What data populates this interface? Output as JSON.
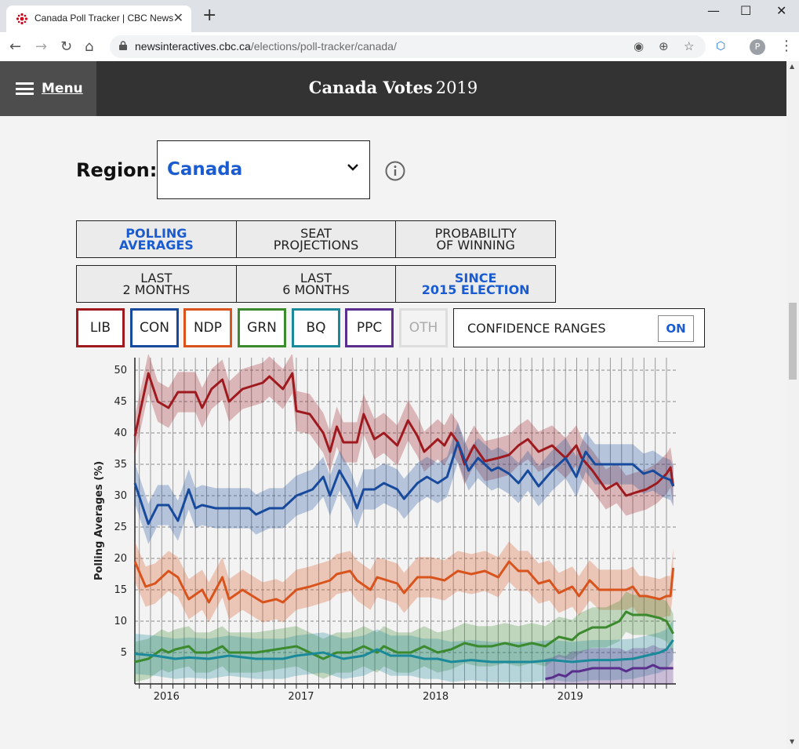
{
  "browser": {
    "tab_title": "Canada Poll Tracker | CBC News",
    "url_host": "newsinteractives.cbc.ca",
    "url_path": "/elections/poll-tracker/canada/",
    "avatar_initial": "P"
  },
  "header": {
    "menu_label": "Menu",
    "title_bold": "Canada Votes",
    "title_year": "2019"
  },
  "region": {
    "label": "Region:",
    "value": "Canada"
  },
  "view_tabs": [
    {
      "line1": "POLLING",
      "line2": "AVERAGES",
      "active": true
    },
    {
      "line1": "SEAT",
      "line2": "PROJECTIONS",
      "active": false
    },
    {
      "line1": "PROBABILITY",
      "line2": "OF WINNING",
      "active": false
    }
  ],
  "range_tabs": [
    {
      "line1": "LAST",
      "line2": "2 MONTHS",
      "active": false
    },
    {
      "line1": "LAST",
      "line2": "6 MONTHS",
      "active": false
    },
    {
      "line1": "SINCE",
      "line2": "2015 ELECTION",
      "active": true
    }
  ],
  "parties": [
    {
      "code": "LIB",
      "color": "#9e1a1f",
      "active": true
    },
    {
      "code": "CON",
      "color": "#174a9c",
      "active": true
    },
    {
      "code": "NDP",
      "color": "#d9541d",
      "active": true
    },
    {
      "code": "GRN",
      "color": "#3b8a2e",
      "active": true
    },
    {
      "code": "BQ",
      "color": "#1a8a9a",
      "active": true
    },
    {
      "code": "PPC",
      "color": "#5a2e8c",
      "active": true
    },
    {
      "code": "OTH",
      "color": "#cccccc",
      "active": false
    }
  ],
  "confidence": {
    "label": "CONFIDENCE RANGES",
    "state": "ON"
  },
  "chart_data": {
    "type": "line",
    "ylabel": "Polling Averages (%)",
    "ylim": [
      0,
      52
    ],
    "yticks": [
      5,
      10,
      15,
      20,
      25,
      30,
      35,
      40,
      45,
      50
    ],
    "x_tick_labels": [
      "2016",
      "2017",
      "2018",
      "2019"
    ],
    "xlim": [
      2015.8,
      2019.82
    ],
    "confidence_ranges": true,
    "series": [
      {
        "name": "LIB",
        "color": "#9e1a1f",
        "points": [
          [
            2015.8,
            39.5
          ],
          [
            2015.9,
            49.5
          ],
          [
            2015.97,
            45
          ],
          [
            2016.05,
            44
          ],
          [
            2016.12,
            46.5
          ],
          [
            2016.25,
            46.5
          ],
          [
            2016.3,
            44
          ],
          [
            2016.37,
            47
          ],
          [
            2016.45,
            48.5
          ],
          [
            2016.5,
            45
          ],
          [
            2016.6,
            47
          ],
          [
            2016.75,
            48
          ],
          [
            2016.8,
            49
          ],
          [
            2016.9,
            47
          ],
          [
            2016.97,
            49.5
          ],
          [
            2017.0,
            43.5
          ],
          [
            2017.1,
            43
          ],
          [
            2017.2,
            40
          ],
          [
            2017.25,
            37
          ],
          [
            2017.3,
            41
          ],
          [
            2017.35,
            38.5
          ],
          [
            2017.45,
            38.5
          ],
          [
            2017.5,
            43
          ],
          [
            2017.58,
            39
          ],
          [
            2017.65,
            40
          ],
          [
            2017.75,
            38
          ],
          [
            2017.83,
            42
          ],
          [
            2017.9,
            39.5
          ],
          [
            2017.95,
            37
          ],
          [
            2018.05,
            39
          ],
          [
            2018.1,
            38
          ],
          [
            2018.15,
            40
          ],
          [
            2018.2,
            38.5
          ],
          [
            2018.25,
            35
          ],
          [
            2018.32,
            38
          ],
          [
            2018.4,
            35.5
          ],
          [
            2018.5,
            36
          ],
          [
            2018.58,
            36.5
          ],
          [
            2018.65,
            38
          ],
          [
            2018.72,
            39
          ],
          [
            2018.8,
            37
          ],
          [
            2018.9,
            38
          ],
          [
            2019.0,
            36
          ],
          [
            2019.08,
            38
          ],
          [
            2019.12,
            36
          ],
          [
            2019.2,
            34
          ],
          [
            2019.3,
            31
          ],
          [
            2019.38,
            32
          ],
          [
            2019.45,
            30
          ],
          [
            2019.52,
            30.5
          ],
          [
            2019.6,
            31
          ],
          [
            2019.68,
            32
          ],
          [
            2019.75,
            33.5
          ],
          [
            2019.78,
            34.5
          ],
          [
            2019.8,
            31.5
          ]
        ]
      },
      {
        "name": "CON",
        "color": "#174a9c",
        "points": [
          [
            2015.8,
            32
          ],
          [
            2015.9,
            25.5
          ],
          [
            2015.97,
            28.5
          ],
          [
            2016.05,
            28.5
          ],
          [
            2016.12,
            26
          ],
          [
            2016.2,
            31
          ],
          [
            2016.25,
            28
          ],
          [
            2016.3,
            28.5
          ],
          [
            2016.4,
            28
          ],
          [
            2016.5,
            28
          ],
          [
            2016.65,
            28
          ],
          [
            2016.7,
            27
          ],
          [
            2016.8,
            28
          ],
          [
            2016.9,
            28
          ],
          [
            2017.0,
            30
          ],
          [
            2017.12,
            31
          ],
          [
            2017.2,
            33
          ],
          [
            2017.25,
            30
          ],
          [
            2017.32,
            34
          ],
          [
            2017.4,
            31
          ],
          [
            2017.45,
            28
          ],
          [
            2017.5,
            31
          ],
          [
            2017.58,
            31
          ],
          [
            2017.65,
            32
          ],
          [
            2017.75,
            31
          ],
          [
            2017.8,
            29.5
          ],
          [
            2017.9,
            32
          ],
          [
            2017.97,
            33
          ],
          [
            2018.05,
            32
          ],
          [
            2018.12,
            33
          ],
          [
            2018.2,
            38.5
          ],
          [
            2018.28,
            34
          ],
          [
            2018.35,
            36
          ],
          [
            2018.45,
            34
          ],
          [
            2018.5,
            34.5
          ],
          [
            2018.58,
            33.5
          ],
          [
            2018.65,
            32
          ],
          [
            2018.72,
            34
          ],
          [
            2018.8,
            31.5
          ],
          [
            2018.9,
            34
          ],
          [
            2019.0,
            36
          ],
          [
            2019.08,
            33
          ],
          [
            2019.15,
            37
          ],
          [
            2019.22,
            35
          ],
          [
            2019.3,
            35
          ],
          [
            2019.4,
            35
          ],
          [
            2019.5,
            35
          ],
          [
            2019.58,
            33.5
          ],
          [
            2019.65,
            34
          ],
          [
            2019.72,
            33
          ],
          [
            2019.78,
            32.5
          ],
          [
            2019.8,
            31.5
          ]
        ]
      },
      {
        "name": "NDP",
        "color": "#d9541d",
        "points": [
          [
            2015.8,
            19.5
          ],
          [
            2015.88,
            15.5
          ],
          [
            2015.95,
            16
          ],
          [
            2016.05,
            18
          ],
          [
            2016.12,
            17
          ],
          [
            2016.2,
            13.5
          ],
          [
            2016.3,
            15
          ],
          [
            2016.35,
            13
          ],
          [
            2016.45,
            17
          ],
          [
            2016.5,
            13.5
          ],
          [
            2016.6,
            15
          ],
          [
            2016.75,
            13
          ],
          [
            2016.85,
            13.5
          ],
          [
            2016.9,
            13
          ],
          [
            2017.0,
            15
          ],
          [
            2017.1,
            15.5
          ],
          [
            2017.25,
            16.5
          ],
          [
            2017.3,
            17.5
          ],
          [
            2017.4,
            18
          ],
          [
            2017.45,
            16.5
          ],
          [
            2017.55,
            15
          ],
          [
            2017.6,
            17
          ],
          [
            2017.75,
            16
          ],
          [
            2017.8,
            14.5
          ],
          [
            2017.9,
            17
          ],
          [
            2018.0,
            17
          ],
          [
            2018.1,
            16.5
          ],
          [
            2018.2,
            18
          ],
          [
            2018.3,
            17.5
          ],
          [
            2018.4,
            18
          ],
          [
            2018.5,
            17
          ],
          [
            2018.58,
            19.5
          ],
          [
            2018.65,
            18
          ],
          [
            2018.72,
            18
          ],
          [
            2018.8,
            16
          ],
          [
            2018.88,
            16.5
          ],
          [
            2018.95,
            14.5
          ],
          [
            2019.05,
            15.5
          ],
          [
            2019.1,
            14
          ],
          [
            2019.18,
            16.5
          ],
          [
            2019.25,
            15
          ],
          [
            2019.35,
            15
          ],
          [
            2019.45,
            15
          ],
          [
            2019.5,
            15.5
          ],
          [
            2019.55,
            14
          ],
          [
            2019.6,
            14
          ],
          [
            2019.7,
            13.5
          ],
          [
            2019.75,
            14
          ],
          [
            2019.78,
            14
          ],
          [
            2019.8,
            18.5
          ]
        ]
      },
      {
        "name": "GRN",
        "color": "#3b8a2e",
        "points": [
          [
            2015.8,
            3.5
          ],
          [
            2015.9,
            4
          ],
          [
            2016.0,
            5.5
          ],
          [
            2016.05,
            5
          ],
          [
            2016.1,
            5.5
          ],
          [
            2016.2,
            6
          ],
          [
            2016.25,
            5
          ],
          [
            2016.35,
            5
          ],
          [
            2016.45,
            6
          ],
          [
            2016.5,
            5
          ],
          [
            2016.7,
            5
          ],
          [
            2016.85,
            5.5
          ],
          [
            2017.0,
            6
          ],
          [
            2017.1,
            5
          ],
          [
            2017.2,
            4
          ],
          [
            2017.3,
            5
          ],
          [
            2017.4,
            5
          ],
          [
            2017.5,
            6
          ],
          [
            2017.6,
            5
          ],
          [
            2017.65,
            6
          ],
          [
            2017.75,
            5
          ],
          [
            2017.85,
            5
          ],
          [
            2017.95,
            6
          ],
          [
            2018.05,
            5
          ],
          [
            2018.15,
            5.5
          ],
          [
            2018.25,
            6.5
          ],
          [
            2018.35,
            6
          ],
          [
            2018.45,
            6
          ],
          [
            2018.55,
            6.5
          ],
          [
            2018.65,
            6
          ],
          [
            2018.75,
            6.5
          ],
          [
            2018.85,
            6
          ],
          [
            2018.95,
            7.5
          ],
          [
            2019.05,
            7
          ],
          [
            2019.1,
            8
          ],
          [
            2019.2,
            9
          ],
          [
            2019.3,
            9
          ],
          [
            2019.4,
            10
          ],
          [
            2019.45,
            11.5
          ],
          [
            2019.5,
            11
          ],
          [
            2019.6,
            11
          ],
          [
            2019.7,
            10.5
          ],
          [
            2019.75,
            10
          ],
          [
            2019.8,
            8
          ]
        ]
      },
      {
        "name": "BQ",
        "color": "#1a8a9a",
        "points": [
          [
            2015.8,
            4.8
          ],
          [
            2015.95,
            4.5
          ],
          [
            2016.1,
            4
          ],
          [
            2016.2,
            4.2
          ],
          [
            2016.35,
            4
          ],
          [
            2016.5,
            4.5
          ],
          [
            2016.7,
            4
          ],
          [
            2016.9,
            4
          ],
          [
            2017.0,
            4.5
          ],
          [
            2017.2,
            5
          ],
          [
            2017.35,
            4
          ],
          [
            2017.5,
            4.5
          ],
          [
            2017.6,
            5.5
          ],
          [
            2017.7,
            4.5
          ],
          [
            2017.85,
            4.5
          ],
          [
            2017.95,
            4
          ],
          [
            2018.05,
            4
          ],
          [
            2018.15,
            3.5
          ],
          [
            2018.3,
            3.8
          ],
          [
            2018.45,
            3.5
          ],
          [
            2018.6,
            3.5
          ],
          [
            2018.75,
            3.5
          ],
          [
            2018.9,
            3.8
          ],
          [
            2019.05,
            3.5
          ],
          [
            2019.2,
            3.8
          ],
          [
            2019.35,
            3.8
          ],
          [
            2019.5,
            4
          ],
          [
            2019.6,
            4.5
          ],
          [
            2019.7,
            5
          ],
          [
            2019.75,
            5.5
          ],
          [
            2019.8,
            7
          ]
        ]
      },
      {
        "name": "PPC",
        "color": "#5a2e8c",
        "points": [
          [
            2018.85,
            0.8
          ],
          [
            2018.9,
            1
          ],
          [
            2018.95,
            1.5
          ],
          [
            2019.0,
            1.2
          ],
          [
            2019.05,
            2
          ],
          [
            2019.1,
            2
          ],
          [
            2019.2,
            2.5
          ],
          [
            2019.3,
            2.5
          ],
          [
            2019.4,
            2.5
          ],
          [
            2019.45,
            2
          ],
          [
            2019.5,
            2.5
          ],
          [
            2019.55,
            2.5
          ],
          [
            2019.6,
            2.5
          ],
          [
            2019.65,
            3
          ],
          [
            2019.7,
            2.5
          ],
          [
            2019.75,
            2.5
          ],
          [
            2019.8,
            2.5
          ]
        ]
      }
    ]
  }
}
